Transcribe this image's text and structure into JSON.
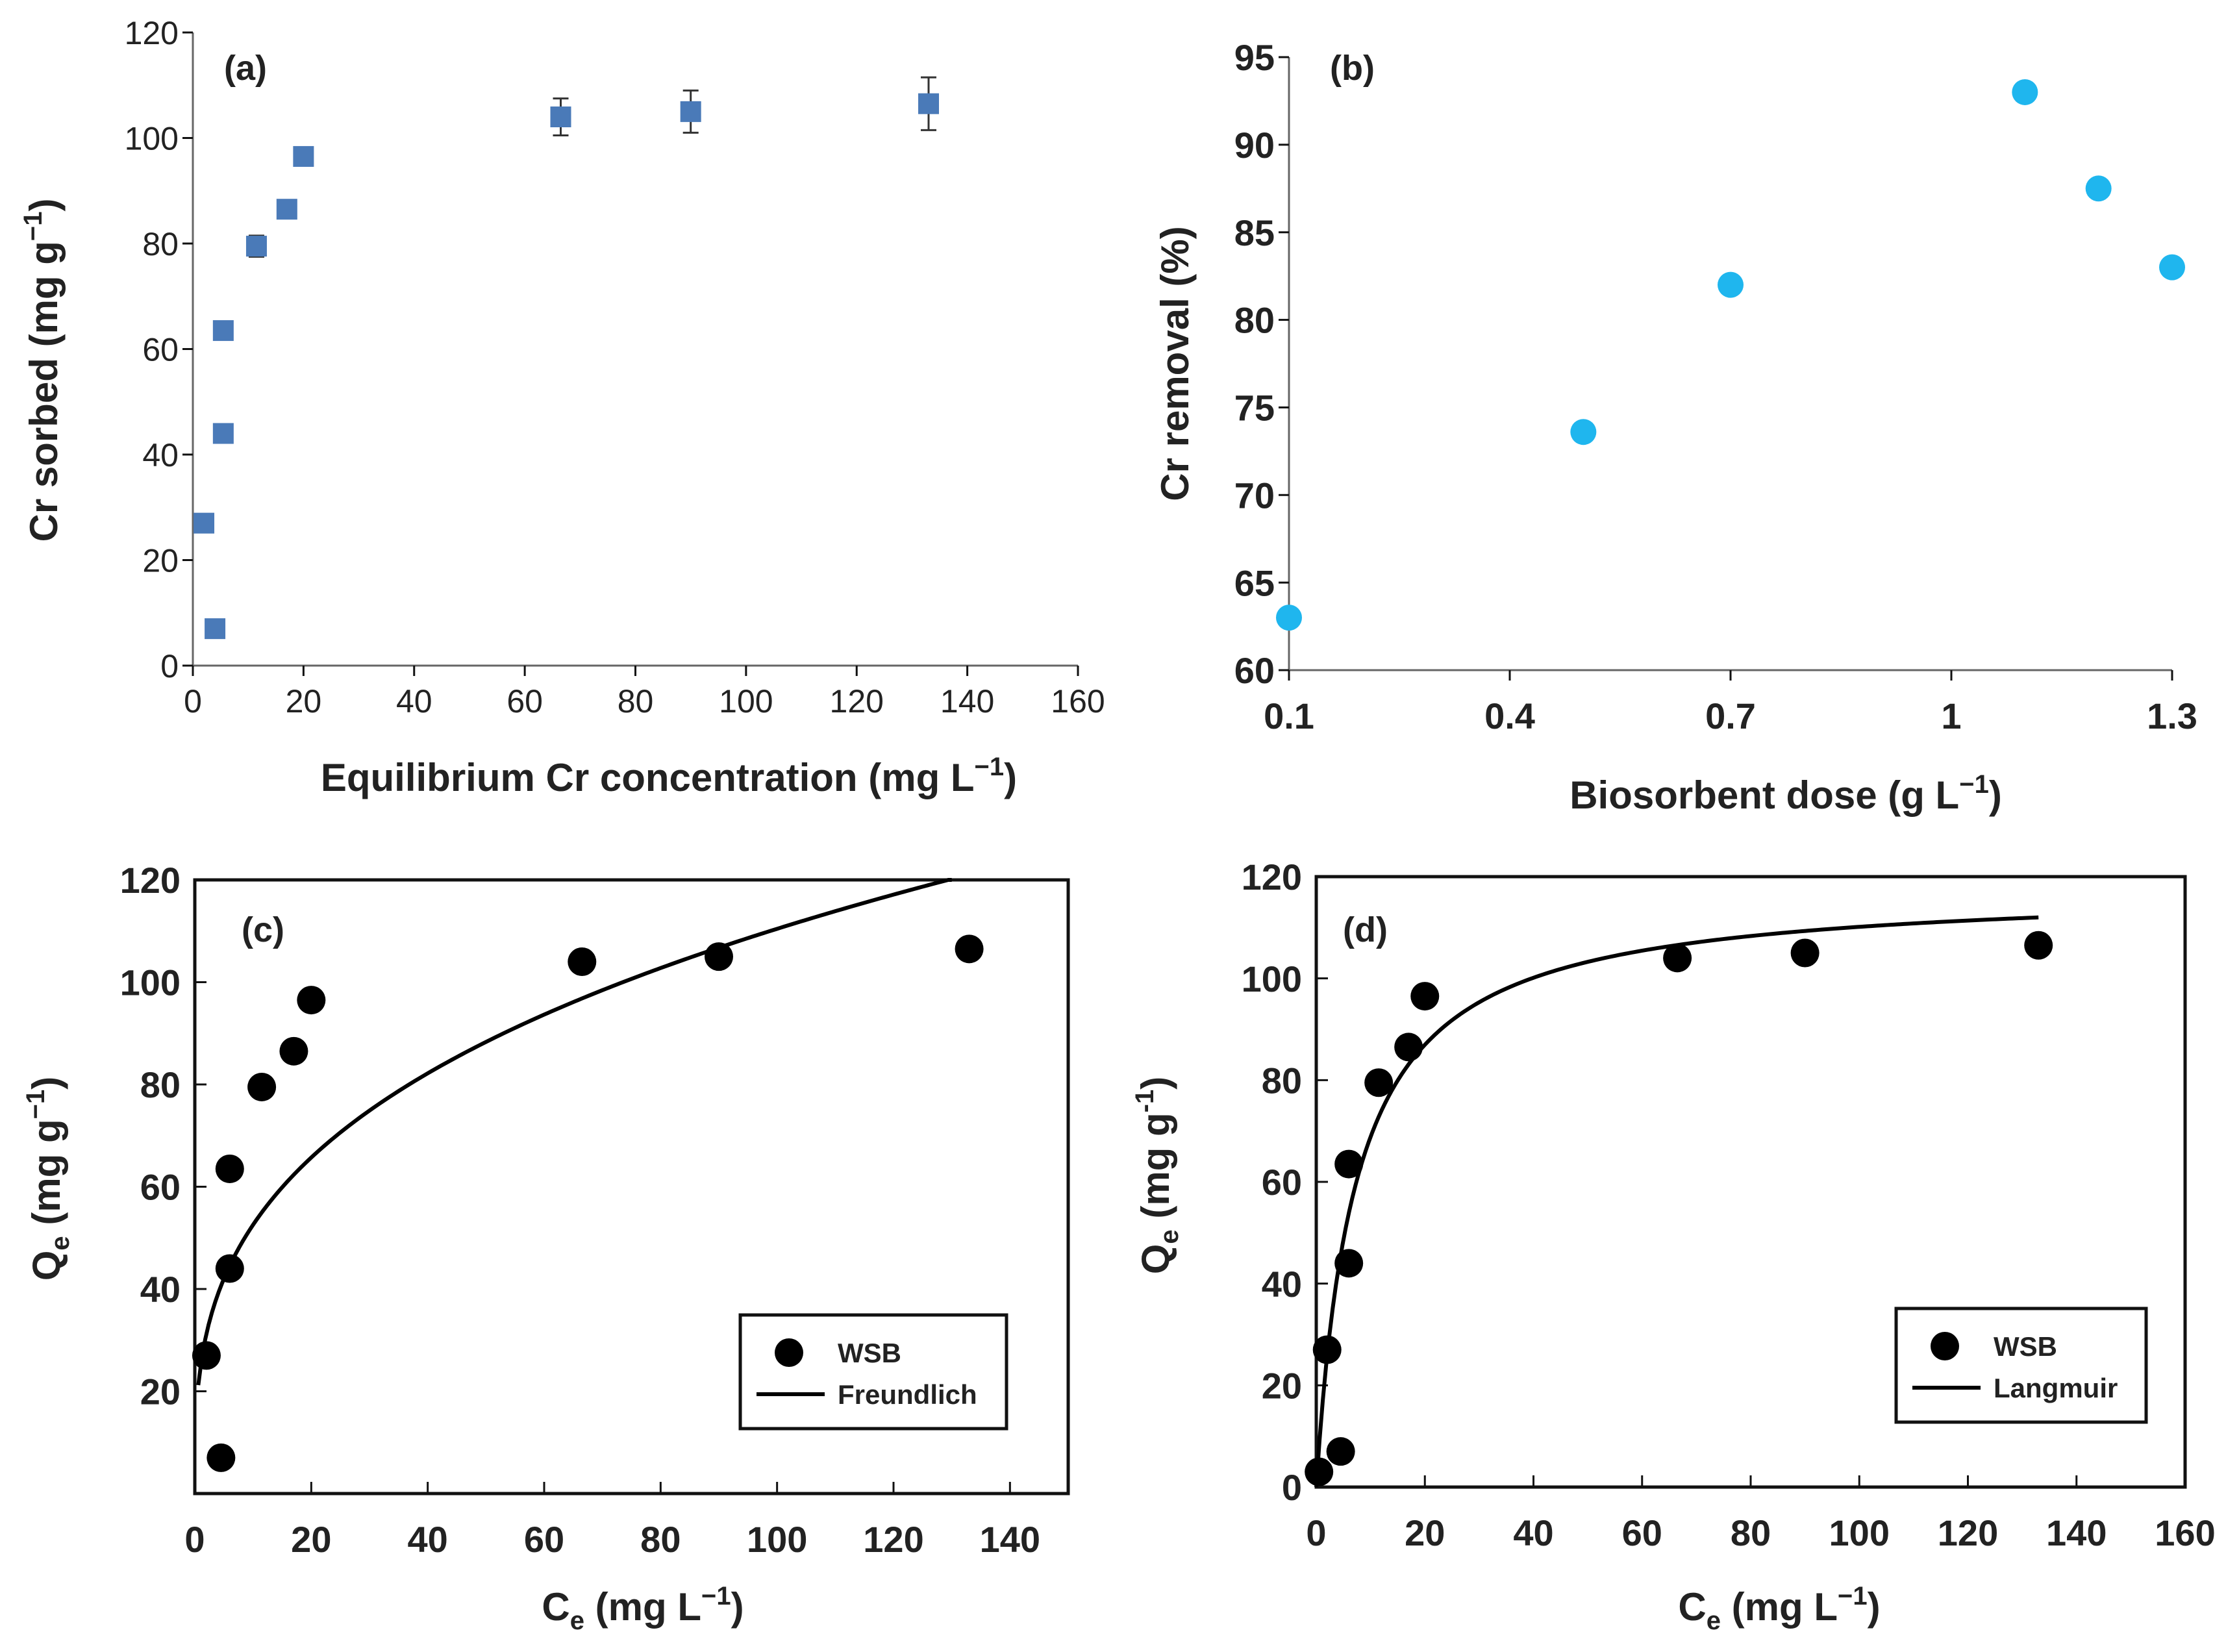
{
  "colors": {
    "square_marker": "#4a7ab8",
    "circle_cyan": "#1fb6ee",
    "circle_black": "#000000",
    "axis": "#111111",
    "text": "#222222"
  },
  "chart_data": [
    {
      "id": "a",
      "type": "scatter",
      "panel_label": "(a)",
      "xlabel": "Equilibrium Cr concentration (mg L",
      "xlabel_sup": "−1",
      "xlabel_end": ")",
      "ylabel": "Cr sorbed  (mg g",
      "ylabel_sup": "−1",
      "ylabel_end": ")",
      "xlim": [
        0,
        160
      ],
      "ylim": [
        0,
        120
      ],
      "xticks": [
        0,
        20,
        40,
        60,
        80,
        100,
        120,
        140,
        160
      ],
      "yticks": [
        0,
        20,
        40,
        60,
        80,
        100,
        120
      ],
      "marker": "square",
      "points": [
        {
          "x": 2,
          "y": 27,
          "err": 0
        },
        {
          "x": 4,
          "y": 7,
          "err": 0
        },
        {
          "x": 5.5,
          "y": 44,
          "err": 0
        },
        {
          "x": 5.5,
          "y": 63.5,
          "err": 0
        },
        {
          "x": 11.5,
          "y": 79.5,
          "err": 2
        },
        {
          "x": 17,
          "y": 86.5,
          "err": 0
        },
        {
          "x": 20,
          "y": 96.5,
          "err": 0
        },
        {
          "x": 66.5,
          "y": 104,
          "err": 3.5
        },
        {
          "x": 90,
          "y": 105,
          "err": 4
        },
        {
          "x": 133,
          "y": 106.5,
          "err": 5
        }
      ]
    },
    {
      "id": "b",
      "type": "scatter",
      "panel_label": "(b)",
      "xlabel": "Biosorbent dose (g L",
      "xlabel_sup": "−1",
      "xlabel_end": ")",
      "ylabel": "Cr  removal (%)",
      "xlim": [
        0.1,
        1.3
      ],
      "ylim": [
        60,
        95
      ],
      "xticks": [
        0.1,
        0.4,
        0.7,
        1,
        1.3
      ],
      "xtick_labels": [
        "0.1",
        "0.4",
        "0.7",
        "1",
        "1.3"
      ],
      "yticks": [
        60,
        65,
        70,
        75,
        80,
        85,
        90,
        95
      ],
      "marker": "circle",
      "points": [
        {
          "x": 0.1,
          "y": 63
        },
        {
          "x": 0.5,
          "y": 73.6
        },
        {
          "x": 0.7,
          "y": 82
        },
        {
          "x": 1.1,
          "y": 93
        },
        {
          "x": 1.2,
          "y": 87.5
        },
        {
          "x": 1.3,
          "y": 83
        }
      ]
    },
    {
      "id": "c",
      "type": "scatter",
      "panel_label": "(c)",
      "xlabel": "C",
      "xlabel_sub": "e",
      "xlabel_end": " (mg L",
      "xlabel_sup": "−1",
      "xlabel_end2": ")",
      "ylabel": "Q",
      "ylabel_sub": "e",
      "ylabel_end": " (mg g",
      "ylabel_sup": "−1",
      "ylabel_end2": ")",
      "xlim": [
        0,
        150
      ],
      "ylim": [
        0,
        120
      ],
      "xticks": [
        0,
        20,
        40,
        60,
        80,
        100,
        120,
        140
      ],
      "yticks": [
        20,
        40,
        60,
        80,
        100,
        120
      ],
      "marker": "circle",
      "points": [
        {
          "x": 2,
          "y": 27
        },
        {
          "x": 4.5,
          "y": 7
        },
        {
          "x": 6,
          "y": 44
        },
        {
          "x": 6,
          "y": 63.5
        },
        {
          "x": 11.5,
          "y": 79.5
        },
        {
          "x": 17,
          "y": 86.5
        },
        {
          "x": 20,
          "y": 96.5
        },
        {
          "x": 66.5,
          "y": 104
        },
        {
          "x": 90,
          "y": 105
        },
        {
          "x": 133,
          "y": 106.5
        }
      ],
      "fit": {
        "model": "freundlich",
        "K": 25,
        "n": 3.1,
        "x_range": [
          0.6,
          130
        ]
      },
      "legend": {
        "points_label": "WSB",
        "line_label": "Freundlich",
        "position": "bottom-right"
      }
    },
    {
      "id": "d",
      "type": "scatter",
      "panel_label": "(d)",
      "xlabel": "C",
      "xlabel_sub": "e",
      "xlabel_end": " (mg L",
      "xlabel_sup": "−1",
      "xlabel_end2": ")",
      "ylabel": "Q",
      "ylabel_sub": "e",
      "ylabel_end": " (mg g",
      "ylabel_sup": "-1",
      "ylabel_end2": ")",
      "xlim": [
        0,
        160
      ],
      "ylim": [
        0,
        120
      ],
      "xticks": [
        0,
        20,
        40,
        60,
        80,
        100,
        120,
        140,
        160
      ],
      "yticks": [
        0,
        20,
        40,
        60,
        80,
        100,
        120
      ],
      "marker": "circle",
      "points": [
        {
          "x": 0.5,
          "y": 3
        },
        {
          "x": 2,
          "y": 27
        },
        {
          "x": 4.5,
          "y": 7
        },
        {
          "x": 6,
          "y": 44
        },
        {
          "x": 6,
          "y": 63.5
        },
        {
          "x": 11.5,
          "y": 79.5
        },
        {
          "x": 17,
          "y": 86.5
        },
        {
          "x": 20,
          "y": 96.5
        },
        {
          "x": 66.5,
          "y": 104
        },
        {
          "x": 90,
          "y": 105
        },
        {
          "x": 133,
          "y": 106.5
        }
      ],
      "fit": {
        "model": "langmuir",
        "qmax": 118,
        "b": 0.14,
        "x_range": [
          0,
          133
        ]
      },
      "legend": {
        "points_label": "WSB",
        "line_label": "Langmuir",
        "position": "bottom-right"
      }
    }
  ]
}
